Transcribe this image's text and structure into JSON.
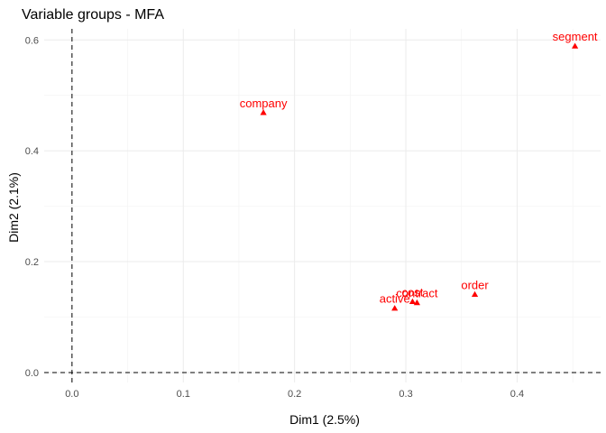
{
  "chart_data": {
    "type": "scatter",
    "title": "Variable groups - MFA",
    "xlabel": "Dim1 (2.5%)",
    "ylabel": "Dim2 (2.1%)",
    "xlim": [
      -0.025,
      0.475
    ],
    "ylim": [
      -0.018,
      0.62
    ],
    "x_ticks": [
      0.0,
      0.1,
      0.2,
      0.3,
      0.4
    ],
    "x_tick_labels": [
      "0.0",
      "0.1",
      "0.2",
      "0.3",
      "0.4"
    ],
    "y_ticks": [
      0.0,
      0.2,
      0.4,
      0.6
    ],
    "y_tick_labels": [
      "0.0",
      "0.2",
      "0.4",
      "0.6"
    ],
    "grid": true,
    "reference_lines": {
      "x": 0,
      "y": 0
    },
    "marker": "triangle",
    "color": "#ff0000",
    "points": [
      {
        "label": "segment",
        "x": 0.452,
        "y": 0.589
      },
      {
        "label": "company",
        "x": 0.172,
        "y": 0.469
      },
      {
        "label": "order",
        "x": 0.362,
        "y": 0.141
      },
      {
        "label": "contract",
        "x": 0.31,
        "y": 0.126
      },
      {
        "label": "cost",
        "x": 0.306,
        "y": 0.128
      },
      {
        "label": "active",
        "x": 0.29,
        "y": 0.116
      }
    ]
  }
}
